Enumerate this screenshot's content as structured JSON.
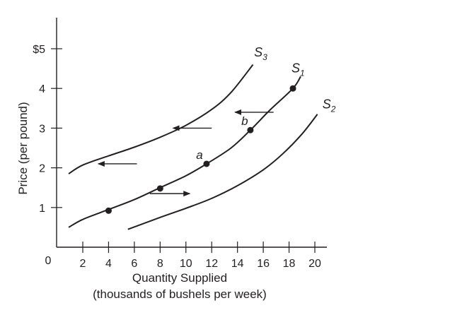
{
  "chart_data": {
    "type": "line",
    "title": "",
    "xlabel": "Quantity Supplied",
    "xlabel_sub": "(thousands of bushels per week)",
    "ylabel": "Price (per pound)",
    "origin_label": "0",
    "xlim": [
      0,
      20
    ],
    "ylim": [
      0,
      5.5
    ],
    "x_ticks": [
      {
        "value": 2,
        "label": "2"
      },
      {
        "value": 4,
        "label": "4"
      },
      {
        "value": 6,
        "label": "6"
      },
      {
        "value": 8,
        "label": "8"
      },
      {
        "value": 10,
        "label": "10"
      },
      {
        "value": 12,
        "label": "12"
      },
      {
        "value": 14,
        "label": "14"
      },
      {
        "value": 16,
        "label": "16"
      },
      {
        "value": 18,
        "label": "18"
      },
      {
        "value": 20,
        "label": "20"
      }
    ],
    "y_ticks": [
      {
        "value": 1,
        "label": "1"
      },
      {
        "value": 2,
        "label": "2"
      },
      {
        "value": 3,
        "label": "3"
      },
      {
        "value": 4,
        "label": "4"
      },
      {
        "value": 5,
        "label": "$5"
      }
    ],
    "grid": false,
    "legend": "none",
    "series": [
      {
        "name": "S",
        "subscript": "1",
        "label_at": [
          18.7,
          4.4
        ],
        "x": [
          0,
          2,
          4,
          6,
          8,
          10,
          11.6,
          13.5,
          15,
          16.5,
          18.3,
          18.9
        ],
        "y": [
          0.5,
          0.7,
          0.95,
          1.2,
          1.5,
          1.8,
          2.1,
          2.5,
          2.95,
          3.45,
          4.0,
          4.3
        ],
        "points": [
          {
            "x": 4,
            "y": 0.92,
            "label": ""
          },
          {
            "x": 8,
            "y": 1.48,
            "label": ""
          },
          {
            "x": 11.6,
            "y": 2.1,
            "label": "a"
          },
          {
            "x": 15,
            "y": 2.95,
            "label": "b"
          },
          {
            "x": 18.3,
            "y": 4.0,
            "label": ""
          }
        ]
      },
      {
        "name": "S",
        "subscript": "2",
        "label_at": [
          21.1,
          3.5
        ],
        "x": [
          5.5,
          8,
          10,
          12,
          14,
          16,
          17.5,
          19,
          20.2
        ],
        "y": [
          0.45,
          0.75,
          0.98,
          1.23,
          1.55,
          1.95,
          2.35,
          2.85,
          3.35
        ],
        "points": []
      },
      {
        "name": "S",
        "subscript": "3",
        "label_at": [
          15.8,
          4.8
        ],
        "x": [
          0,
          2,
          4,
          6,
          8,
          10,
          12,
          13.5,
          15.2
        ],
        "y": [
          1.85,
          2.07,
          2.3,
          2.52,
          2.77,
          3.07,
          3.47,
          3.9,
          4.6
        ],
        "points": []
      }
    ],
    "arrows": [
      {
        "from": [
          12,
          3.0
        ],
        "to": [
          9,
          3.0
        ]
      },
      {
        "from": [
          16.8,
          3.4
        ],
        "to": [
          13.8,
          3.4
        ]
      },
      {
        "from": [
          6.2,
          2.1
        ],
        "to": [
          3.2,
          2.1
        ]
      },
      {
        "from": [
          7.2,
          1.35
        ],
        "to": [
          10.3,
          1.35
        ]
      }
    ]
  }
}
